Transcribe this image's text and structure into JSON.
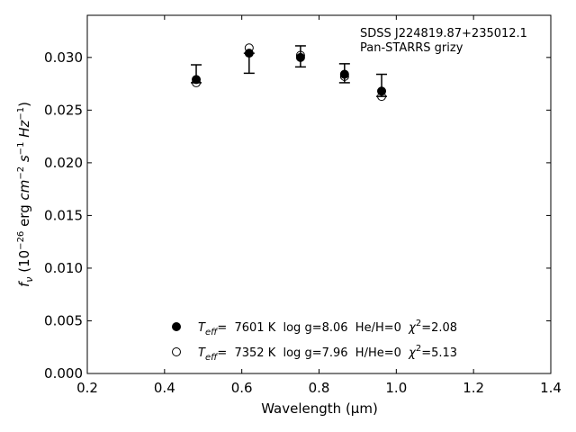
{
  "chart_data": {
    "type": "scatter",
    "xlabel": "Wavelength (μm)",
    "ylabel_parts": {
      "f": "f",
      "nu": "ν",
      "unit_open": " (10",
      "exp_m26": "−26",
      "unit_mid": " erg ",
      "cm": "cm",
      "exp_m2": "−2",
      "s": " s",
      "exp_m1a": "−1",
      "hz": " Hz",
      "exp_m1b": "−1",
      "unit_close": ")"
    },
    "xlim": [
      0.2,
      1.4
    ],
    "ylim": [
      0.0,
      0.034
    ],
    "xticks": [
      "0.2",
      "0.4",
      "0.6",
      "0.8",
      "1.0",
      "1.2",
      "1.4"
    ],
    "yticks": [
      "0.000",
      "0.005",
      "0.010",
      "0.015",
      "0.020",
      "0.025",
      "0.030"
    ],
    "annotation": [
      "SDSS J224819.87+235012.1",
      "Pan-STARRS grizy"
    ],
    "observed": [
      {
        "x": 0.482,
        "y": 0.0284,
        "err_lo": 0.0276,
        "err_hi": 0.0293
      },
      {
        "x": 0.619,
        "y": 0.0304,
        "err_lo": 0.0285,
        "err_hi": 0.0304
      },
      {
        "x": 0.752,
        "y": 0.0301,
        "err_lo": 0.0291,
        "err_hi": 0.0311
      },
      {
        "x": 0.866,
        "y": 0.0285,
        "err_lo": 0.0276,
        "err_hi": 0.0294
      },
      {
        "x": 0.962,
        "y": 0.0263,
        "err_lo": 0.0263,
        "err_hi": 0.0284
      }
    ],
    "series": [
      {
        "marker": "filled-circle",
        "values": [
          {
            "x": 0.482,
            "y": 0.0279
          },
          {
            "x": 0.619,
            "y": 0.0304
          },
          {
            "x": 0.752,
            "y": 0.03
          },
          {
            "x": 0.866,
            "y": 0.0284
          },
          {
            "x": 0.962,
            "y": 0.0268
          }
        ],
        "legend": {
          "t": "T",
          "eff": "eff",
          "rest": "=  7601 K  log g=8.06  He/H=0  ",
          "chi": "χ",
          "two": "2",
          "val": "=2.08"
        }
      },
      {
        "marker": "open-circle",
        "values": [
          {
            "x": 0.482,
            "y": 0.0276
          },
          {
            "x": 0.619,
            "y": 0.0309
          },
          {
            "x": 0.752,
            "y": 0.0302
          },
          {
            "x": 0.866,
            "y": 0.0282
          },
          {
            "x": 0.962,
            "y": 0.0263
          }
        ],
        "legend": {
          "t": "T",
          "eff": "eff",
          "rest": "=  7352 K  log g=7.96  H/He=0  ",
          "chi": "χ",
          "two": "2",
          "val": "=5.13"
        }
      }
    ],
    "legend_placement": "lower-center",
    "grid": false,
    "colors": {
      "axis": "#000000",
      "marker": "#000000",
      "background": "#ffffff"
    }
  }
}
